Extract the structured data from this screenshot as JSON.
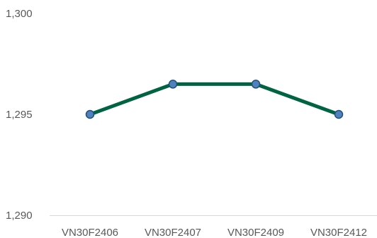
{
  "chart_data": {
    "type": "line",
    "categories": [
      "VN30F2406",
      "VN30F2407",
      "VN30F2409",
      "VN30F2412"
    ],
    "series": [
      {
        "values": [
          1295.0,
          1296.5,
          1296.5,
          1295.0
        ]
      }
    ],
    "ylim": [
      1290,
      1300
    ],
    "yticks": [
      "1,290",
      "1,295",
      "1,300"
    ],
    "title": "",
    "xlabel": "",
    "ylabel": "",
    "grid": false,
    "legend": "none",
    "colors": {
      "line": "#006442",
      "marker_fill": "#4f81bd",
      "marker_stroke": "#1f4e79",
      "axis": "#d9d9d9",
      "tick_text": "#595959"
    }
  }
}
